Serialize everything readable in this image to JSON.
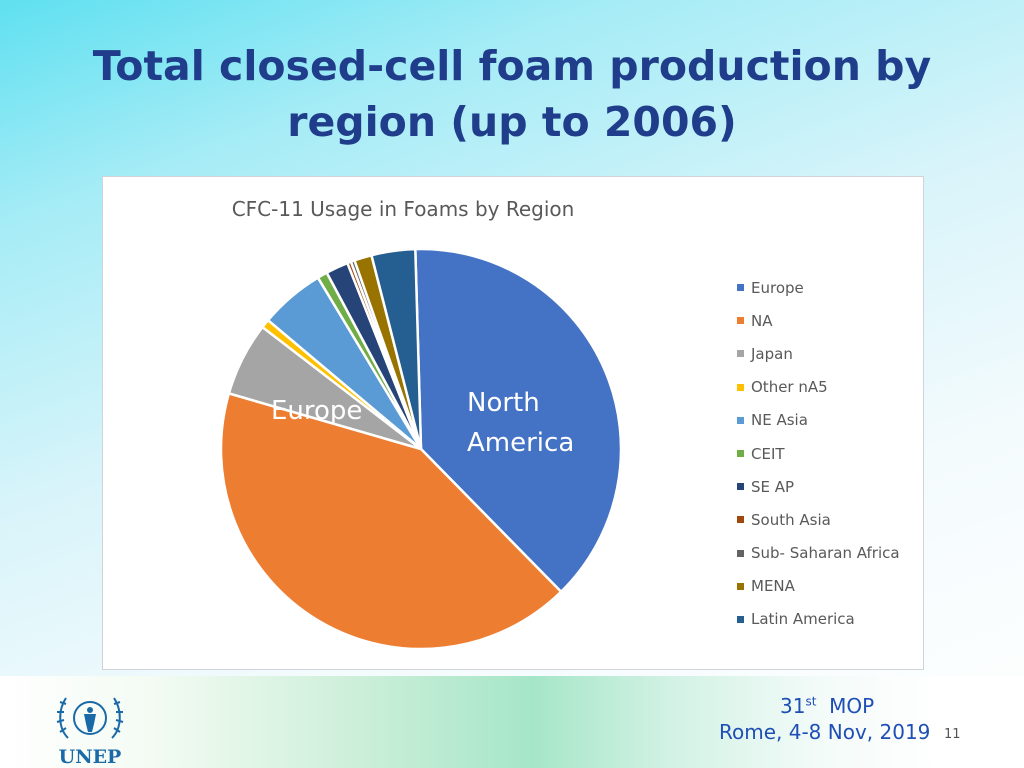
{
  "slide": {
    "title_line1": "Total closed-cell foam production by",
    "title_line2": "region (up to 2006)"
  },
  "chart_data": {
    "type": "pie",
    "title": "CFC-11 Usage in Foams by Region",
    "slices": [
      {
        "name": "Europe",
        "value": 37.8,
        "color": "#4472c4",
        "label": "Europe"
      },
      {
        "name": "NA",
        "value": 41.5,
        "color": "#ed7d31",
        "label_lines": [
          "North",
          "America"
        ]
      },
      {
        "name": "Japan",
        "value": 5.9,
        "color": "#a5a5a5"
      },
      {
        "name": "Other nA5",
        "value": 0.7,
        "color": "#ffc000"
      },
      {
        "name": "NE Asia",
        "value": 5.2,
        "color": "#5b9bd5"
      },
      {
        "name": "CEIT",
        "value": 0.8,
        "color": "#70ad47"
      },
      {
        "name": "SE AP",
        "value": 1.8,
        "color": "#264478"
      },
      {
        "name": "South Asia",
        "value": 0.3,
        "color": "#9e480e"
      },
      {
        "name": "Sub- Saharan Africa",
        "value": 0.3,
        "color": "#636363"
      },
      {
        "name": "MENA",
        "value": 1.4,
        "color": "#997300"
      },
      {
        "name": "Latin America",
        "value": 3.5,
        "color": "#255e91"
      }
    ],
    "legend_position": "right"
  },
  "footer": {
    "meeting_number": "31",
    "meeting_suffix": "st",
    "meeting_name": "MOP",
    "location_date": "Rome, 4-8 Nov, 2019",
    "page_number": "11",
    "logo_text": "UNEP"
  },
  "colors": {
    "title": "#1f3d8a",
    "footer_text": "#1f4fb5"
  }
}
